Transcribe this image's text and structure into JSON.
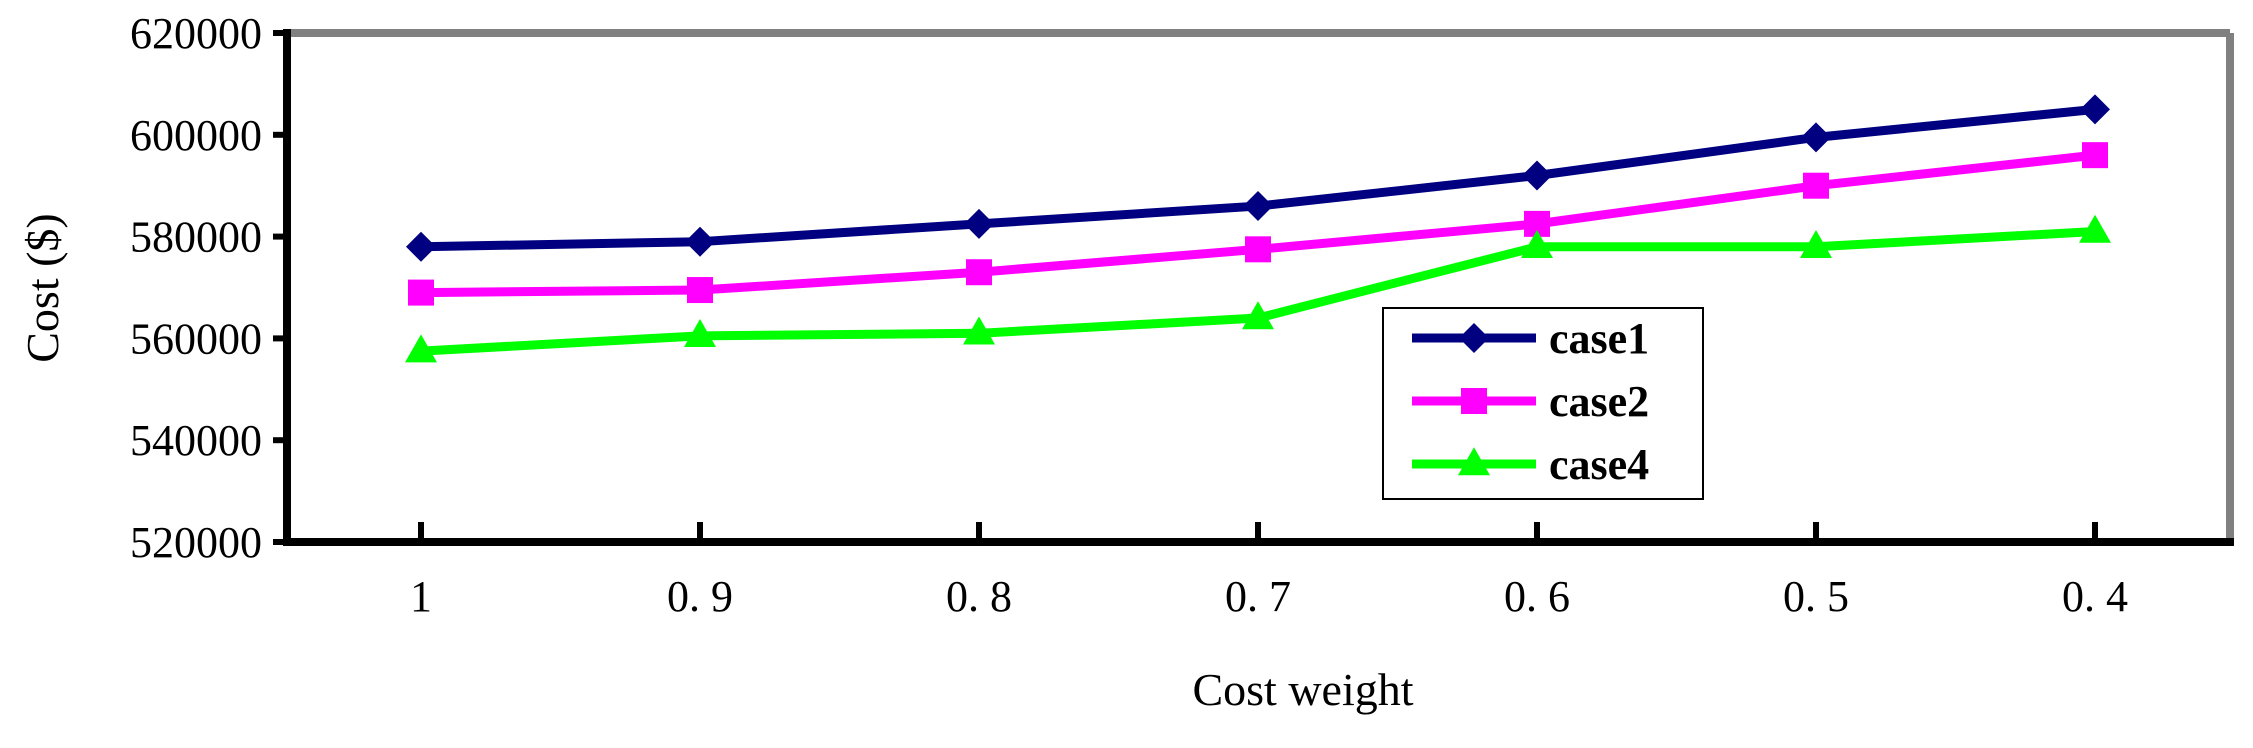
{
  "chart_data": {
    "type": "line",
    "title": "",
    "xlabel": "Cost weight",
    "ylabel": "Cost ($)",
    "categories": [
      "1",
      "0. 9",
      "0. 8",
      "0. 7",
      "0. 6",
      "0. 5",
      "0. 4"
    ],
    "ylim": [
      520000,
      620000
    ],
    "yticks": [
      520000,
      540000,
      560000,
      580000,
      600000,
      620000
    ],
    "ytick_labels": [
      "520000",
      "540000",
      "560000",
      "580000",
      "600000",
      "620000"
    ],
    "grid": false,
    "legend_position": "center-right",
    "series": [
      {
        "name": "case1",
        "color": "#000080",
        "marker": "diamond",
        "values": [
          578000,
          579000,
          582500,
          586000,
          592000,
          599500,
          605000
        ]
      },
      {
        "name": "case2",
        "color": "#ff00ff",
        "marker": "square",
        "values": [
          569000,
          569500,
          573000,
          577500,
          582500,
          590000,
          596000
        ]
      },
      {
        "name": "case4",
        "color": "#00ff00",
        "marker": "triangle",
        "values": [
          557500,
          560500,
          561000,
          564000,
          578000,
          578000,
          581000
        ]
      }
    ]
  }
}
